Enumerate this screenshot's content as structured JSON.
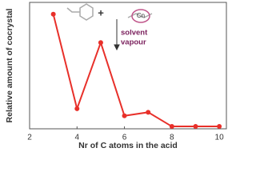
{
  "chart_data": {
    "type": "line",
    "x_label": "Nr of C atoms in the acid",
    "y_label": "Relative amount of cocrystal",
    "annotation": [
      "solvent",
      "vapour"
    ],
    "molecule_label": "Cn",
    "plus": "+",
    "series": [
      {
        "color": "#e8302a",
        "x": [
          3,
          4,
          5,
          6,
          7,
          8,
          9,
          10
        ],
        "values": [
          0.95,
          0.15,
          0.71,
          0.09,
          0.12,
          0.0,
          0.0,
          0.0
        ]
      }
    ],
    "xlim": [
      2,
      10.3
    ],
    "xticks": [
      2,
      4,
      6,
      8,
      10
    ],
    "ylim": [
      -0.02,
      1.05
    ]
  }
}
